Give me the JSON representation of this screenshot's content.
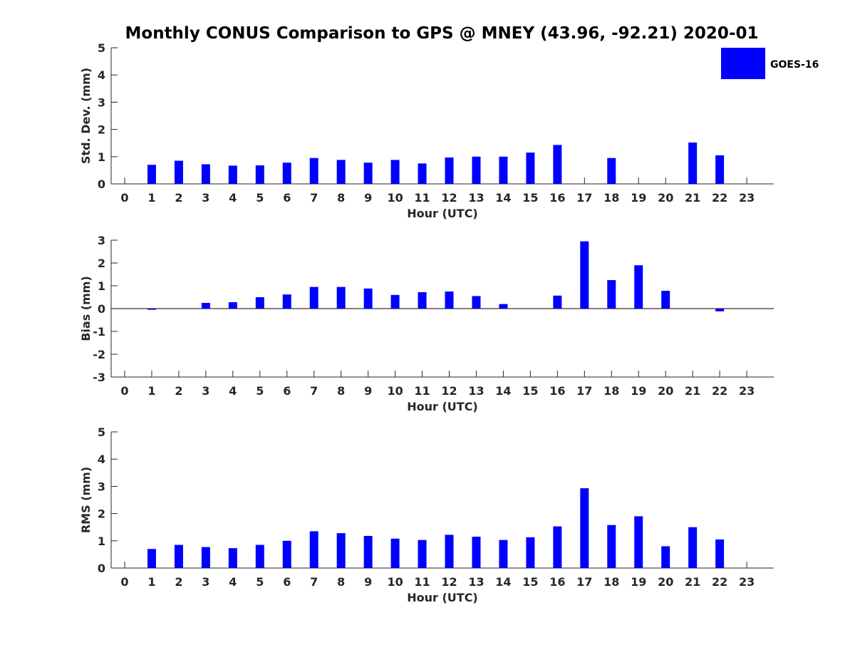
{
  "title": "Monthly CONUS Comparison to GPS @ MNEY (43.96, -92.21) 2020-01",
  "legend": {
    "label": "GOES-16",
    "placement": "top-right"
  },
  "colors": {
    "bar": "#0000ff",
    "axis": "#262626",
    "title": "#000000"
  },
  "chart_data": [
    {
      "type": "bar",
      "title": "Monthly CONUS Comparison to GPS @ MNEY (43.96, -92.21) 2020-01",
      "xlabel": "Hour (UTC)",
      "ylabel": "Std. Dev. (mm)",
      "ylim": [
        0,
        5
      ],
      "yticks": [
        0,
        1,
        2,
        3,
        4,
        5
      ],
      "categories": [
        "0",
        "1",
        "2",
        "3",
        "4",
        "5",
        "6",
        "7",
        "8",
        "9",
        "10",
        "11",
        "12",
        "13",
        "14",
        "15",
        "16",
        "17",
        "18",
        "19",
        "20",
        "21",
        "22",
        "23"
      ],
      "series": [
        {
          "name": "GOES-16",
          "values": [
            null,
            0.7,
            0.85,
            0.72,
            0.67,
            0.68,
            0.78,
            0.95,
            0.88,
            0.78,
            0.88,
            0.75,
            0.97,
            1.0,
            1.0,
            1.15,
            1.43,
            null,
            0.95,
            null,
            null,
            1.52,
            1.05,
            null
          ]
        }
      ],
      "grid": false
    },
    {
      "type": "bar",
      "title": "",
      "xlabel": "Hour (UTC)",
      "ylabel": "Bias (mm)",
      "ylim": [
        -3,
        3
      ],
      "yticks": [
        -3,
        -2,
        -1,
        0,
        1,
        2,
        3
      ],
      "categories": [
        "0",
        "1",
        "2",
        "3",
        "4",
        "5",
        "6",
        "7",
        "8",
        "9",
        "10",
        "11",
        "12",
        "13",
        "14",
        "15",
        "16",
        "17",
        "18",
        "19",
        "20",
        "21",
        "22",
        "23"
      ],
      "series": [
        {
          "name": "GOES-16",
          "values": [
            null,
            -0.05,
            0.0,
            0.25,
            0.28,
            0.5,
            0.62,
            0.95,
            0.95,
            0.88,
            0.6,
            0.72,
            0.75,
            0.55,
            0.2,
            0.0,
            0.57,
            2.95,
            1.25,
            1.9,
            0.78,
            0.0,
            -0.12,
            null
          ]
        }
      ],
      "grid": false
    },
    {
      "type": "bar",
      "title": "",
      "xlabel": "Hour (UTC)",
      "ylabel": "RMS (mm)",
      "ylim": [
        0,
        5
      ],
      "yticks": [
        0,
        1,
        2,
        3,
        4,
        5
      ],
      "categories": [
        "0",
        "1",
        "2",
        "3",
        "4",
        "5",
        "6",
        "7",
        "8",
        "9",
        "10",
        "11",
        "12",
        "13",
        "14",
        "15",
        "16",
        "17",
        "18",
        "19",
        "20",
        "21",
        "22",
        "23"
      ],
      "series": [
        {
          "name": "GOES-16",
          "values": [
            null,
            0.7,
            0.85,
            0.77,
            0.73,
            0.85,
            1.0,
            1.35,
            1.28,
            1.18,
            1.08,
            1.03,
            1.22,
            1.15,
            1.03,
            1.13,
            1.53,
            2.93,
            1.58,
            1.9,
            0.8,
            1.5,
            1.05,
            null
          ]
        }
      ],
      "grid": false
    }
  ]
}
